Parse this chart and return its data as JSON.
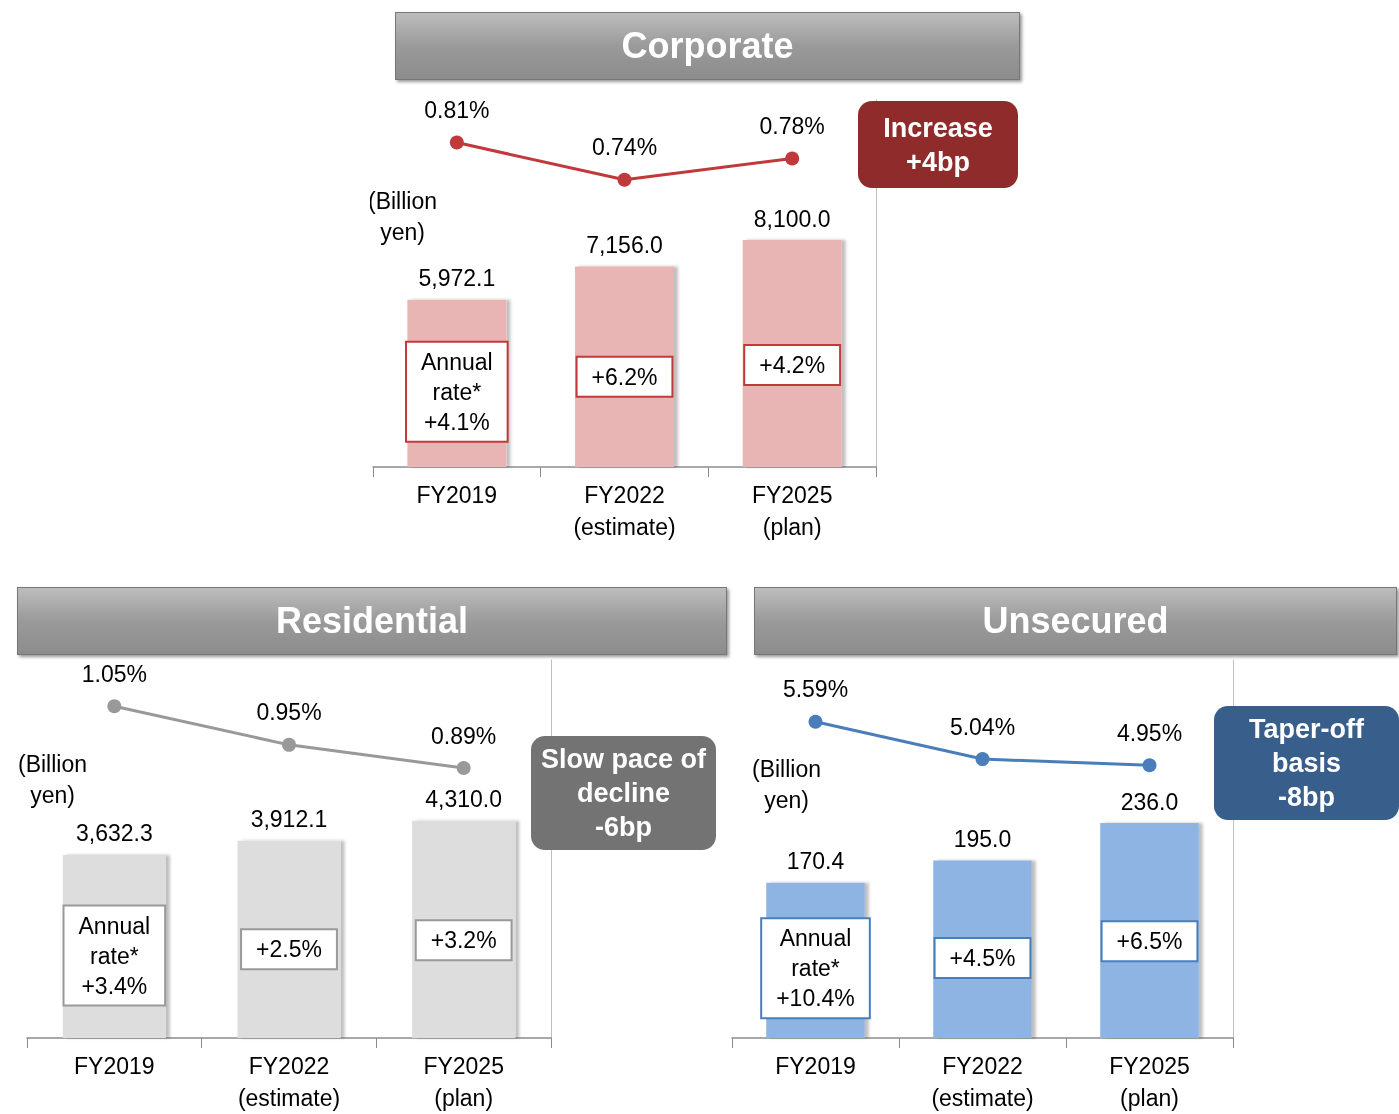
{
  "chart_data": [
    {
      "type": "bar",
      "title": "Corporate",
      "ylabel": "(Billion\nyen)",
      "categories": [
        "FY2019",
        "FY2022\n(estimate)",
        "FY2025\n(plan)"
      ],
      "ylim": [
        0,
        13100
      ],
      "y2lim": [
        0.2,
        0.89
      ],
      "tick_labels": "x",
      "marker": "circle",
      "line_style": "solid",
      "series": [
        {
          "type": "bar",
          "color": "#e8b4b4",
          "values": [
            5972.1,
            7156.0,
            8100.0
          ],
          "value_labels": [
            "5,972.1",
            "7,156.0",
            "8,100.0"
          ]
        },
        {
          "type": "line",
          "axis": "y2",
          "color": "#c0393b",
          "values": [
            0.81,
            0.74,
            0.78
          ],
          "value_labels": [
            "0.81%",
            "0.74%",
            "0.78%"
          ]
        }
      ],
      "annotations": [
        "Annual\nrate*\n+4.1%",
        "+6.2%",
        "+4.2%",
        "Increase\n+4bp"
      ]
    },
    {
      "type": "bar",
      "title": "Residential",
      "ylabel": "(Billion\nyen)",
      "categories": [
        "FY2019",
        "FY2022\n(estimate)",
        "FY2025\n(plan)"
      ],
      "ylim": [
        0,
        7500
      ],
      "y2lim": [
        0.19,
        1.17
      ],
      "tick_labels": "x",
      "marker": "circle",
      "line_style": "solid",
      "series": [
        {
          "type": "bar",
          "color": "#dddddd",
          "values": [
            3632.3,
            3912.1,
            4310.0
          ],
          "value_labels": [
            "3,632.3",
            "3,912.1",
            "4,310.0"
          ]
        },
        {
          "type": "line",
          "axis": "y2",
          "color": "#999999",
          "values": [
            1.05,
            0.95,
            0.89
          ],
          "value_labels": [
            "1.05%",
            "0.95%",
            "0.89%"
          ]
        }
      ],
      "annotations": [
        "Annual\nrate*\n+3.4%",
        "+2.5%",
        "+3.2%",
        "Slow pace of\ndecline\n-6bp"
      ]
    },
    {
      "type": "bar",
      "title": "Unsecured",
      "ylabel": "(Billion\nyen)",
      "categories": [
        "FY2019",
        "FY2022\n(estimate)",
        "FY2025\n(plan)"
      ],
      "ylim": [
        0,
        415
      ],
      "y2lim": [
        0.93,
        6.5
      ],
      "tick_labels": "x",
      "marker": "circle",
      "line_style": "solid",
      "series": [
        {
          "type": "bar",
          "color": "#8db4e2",
          "values": [
            170.4,
            195.0,
            236.0
          ],
          "value_labels": [
            "170.4",
            "195.0",
            "236.0"
          ]
        },
        {
          "type": "line",
          "axis": "y2",
          "color": "#4a7ebb",
          "values": [
            5.59,
            5.04,
            4.95
          ],
          "value_labels": [
            "5.59%",
            "5.04%",
            "4.95%"
          ]
        }
      ],
      "annotations": [
        "Annual\nrate*\n+10.4%",
        "+4.5%",
        "+6.5%",
        "Taper-off\nbasis\n-8bp"
      ]
    }
  ]
}
